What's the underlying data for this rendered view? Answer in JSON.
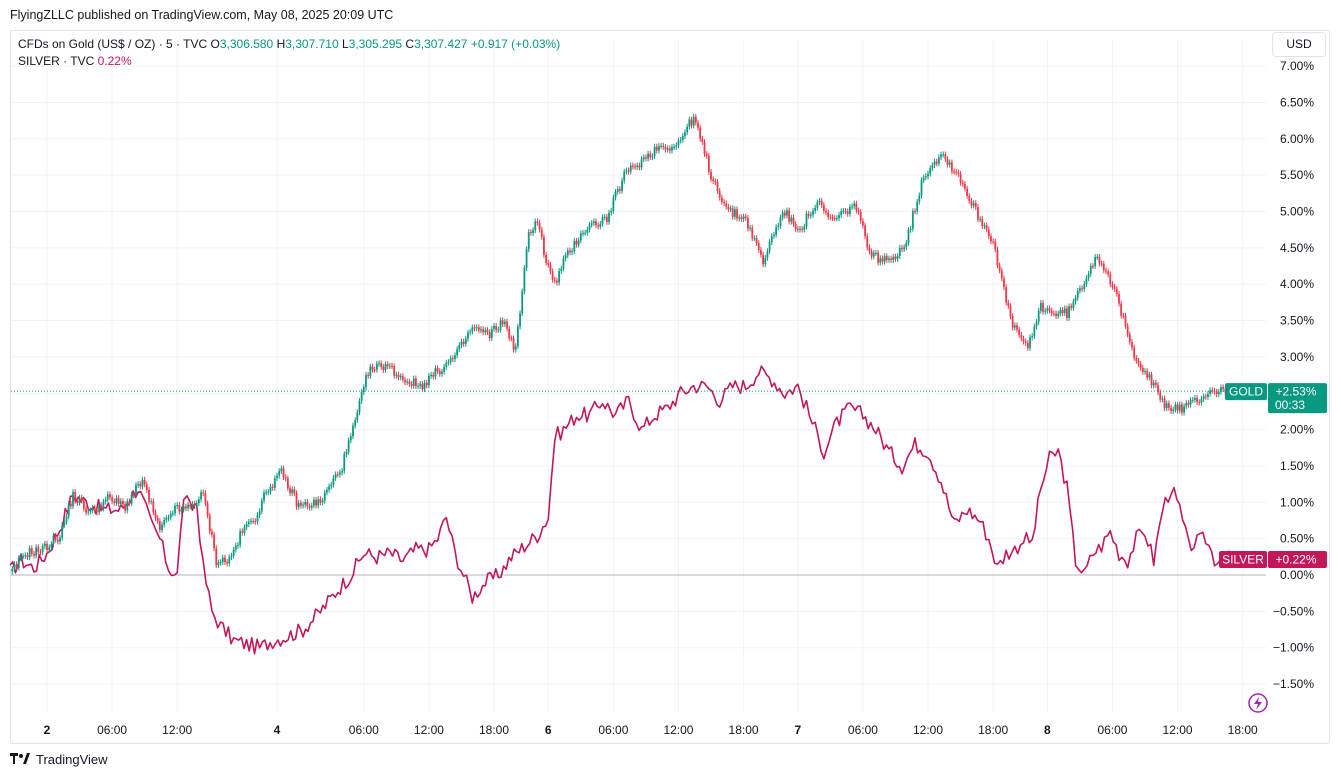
{
  "header": {
    "publisher_line": "FlyingZLLC published on TradingView.com, May 08, 2025 20:09 UTC"
  },
  "legend": {
    "main_symbol": "CFDs on Gold (US$ / OZ) · 5 · TVC",
    "o_label": "O",
    "o_value": "3,306.580",
    "h_label": "H",
    "h_value": "3,307.710",
    "l_label": "L",
    "l_value": "3,305.295",
    "c_label": "C",
    "c_value": "3,307.427",
    "change": "+0.917 (+0.03%)",
    "compare_symbol": "SILVER · TVC",
    "compare_value": "0.22%"
  },
  "currency_button": "USD",
  "brand": {
    "name": "TradingView"
  },
  "colors": {
    "up": "#089981",
    "down": "#f23645",
    "silver": "#c2185b",
    "grid": "#f0f3fa",
    "axis_text": "#131722"
  },
  "chart_data": {
    "type": "line",
    "title": "",
    "y_unit": "percent change",
    "ylim": [
      -1.9,
      7.5
    ],
    "y_ticks": [
      7.0,
      6.5,
      6.0,
      5.5,
      5.0,
      4.5,
      4.0,
      3.5,
      3.0,
      2.5,
      2.0,
      1.5,
      1.0,
      0.5,
      0.0,
      -0.5,
      -1.0,
      -1.5
    ],
    "y_tick_labels": [
      "7.00%",
      "6.50%",
      "6.00%",
      "5.50%",
      "5.00%",
      "4.50%",
      "4.00%",
      "3.50%",
      "3.00%",
      "",
      "2.00%",
      "1.50%",
      "1.00%",
      "0.50%",
      "0.00%",
      "−0.50%",
      "−1.00%",
      "−1.50%"
    ],
    "x_tick_labels": [
      {
        "t": 0.0,
        "label": "2",
        "bold": true
      },
      {
        "t": 3.0,
        "label": "06:00",
        "bold": false
      },
      {
        "t": 6.0,
        "label": "12:00",
        "bold": false
      },
      {
        "t": 10.6,
        "label": "4",
        "bold": true
      },
      {
        "t": 14.6,
        "label": "06:00",
        "bold": false
      },
      {
        "t": 17.6,
        "label": "12:00",
        "bold": false
      },
      {
        "t": 20.6,
        "label": "18:00",
        "bold": false
      },
      {
        "t": 23.1,
        "label": "6",
        "bold": true
      },
      {
        "t": 26.1,
        "label": "06:00",
        "bold": false
      },
      {
        "t": 29.1,
        "label": "12:00",
        "bold": false
      },
      {
        "t": 32.1,
        "label": "18:00",
        "bold": false
      },
      {
        "t": 34.6,
        "label": "7",
        "bold": true
      },
      {
        "t": 37.6,
        "label": "06:00",
        "bold": false
      },
      {
        "t": 40.6,
        "label": "12:00",
        "bold": false
      },
      {
        "t": 43.6,
        "label": "18:00",
        "bold": false
      },
      {
        "t": 46.1,
        "label": "8",
        "bold": true
      },
      {
        "t": 49.1,
        "label": "06:00",
        "bold": false
      },
      {
        "t": 52.1,
        "label": "12:00",
        "bold": false
      },
      {
        "t": 55.1,
        "label": "18:00",
        "bold": false
      }
    ],
    "series": [
      {
        "name": "GOLD",
        "style": "candles",
        "x": [
          -1.7,
          -1.0,
          -0.2,
          0.6,
          1.2,
          2.0,
          2.8,
          3.6,
          4.4,
          5.2,
          5.8,
          6.4,
          7.2,
          7.8,
          8.4,
          9.0,
          9.6,
          10.2,
          10.8,
          11.6,
          12.6,
          13.6,
          14.2,
          14.8,
          15.6,
          16.4,
          17.2,
          18.0,
          18.8,
          19.6,
          20.4,
          21.0,
          21.6,
          22.2,
          22.6,
          23.0,
          23.4,
          23.8,
          24.2,
          24.6,
          25.0,
          25.8,
          26.6,
          27.4,
          28.2,
          29.0,
          29.8,
          30.6,
          31.4,
          32.2,
          33.0,
          33.6,
          34.0,
          34.4,
          34.8,
          35.2,
          35.6,
          36.0,
          36.4,
          36.8,
          37.2,
          38.0,
          38.8,
          39.6,
          40.4,
          41.2,
          42.0,
          42.8,
          43.6,
          44.4,
          45.2,
          45.8,
          46.4,
          47.0,
          47.6,
          48.0,
          48.4,
          48.8,
          49.2,
          50.0,
          50.8,
          51.6,
          52.4,
          53.0,
          53.6,
          54.2,
          54.6,
          55.0,
          55.4,
          55.8
        ],
        "values": [
          0.0,
          0.3,
          0.35,
          0.55,
          1.1,
          0.85,
          1.05,
          0.95,
          1.3,
          0.6,
          0.9,
          0.9,
          1.1,
          0.2,
          0.2,
          0.6,
          0.8,
          1.2,
          1.4,
          0.95,
          1.0,
          1.5,
          2.1,
          2.8,
          2.9,
          2.7,
          2.6,
          2.8,
          3.0,
          3.4,
          3.3,
          3.5,
          3.1,
          4.7,
          4.9,
          4.3,
          4.0,
          4.3,
          4.5,
          4.7,
          4.8,
          4.9,
          5.5,
          5.7,
          5.9,
          5.9,
          6.3,
          5.5,
          5.0,
          4.9,
          4.3,
          4.8,
          5.0,
          4.8,
          4.8,
          5.0,
          5.1,
          4.9,
          4.9,
          5.0,
          5.1,
          4.4,
          4.3,
          4.6,
          5.5,
          5.8,
          5.5,
          5.0,
          4.6,
          3.5,
          3.1,
          3.7,
          3.6,
          3.6,
          3.9,
          4.2,
          4.4,
          4.2,
          3.9,
          3.1,
          2.7,
          2.3,
          2.3,
          2.4,
          2.53,
          2.53,
          2.53,
          2.53,
          2.53,
          2.53
        ]
      },
      {
        "name": "SILVER",
        "style": "line",
        "x": [
          -1.7,
          -1.2,
          -0.6,
          0.0,
          0.6,
          1.2,
          1.8,
          2.6,
          3.4,
          4.2,
          4.8,
          5.2,
          5.6,
          6.0,
          6.3,
          6.6,
          6.9,
          7.2,
          7.6,
          8.0,
          8.6,
          9.2,
          9.8,
          10.4,
          11.0,
          11.8,
          12.6,
          13.4,
          14.0,
          14.6,
          15.2,
          15.8,
          16.4,
          17.0,
          17.6,
          18.0,
          18.4,
          18.8,
          19.2,
          19.6,
          20.2,
          20.8,
          21.4,
          22.0,
          22.6,
          23.1,
          23.4,
          23.8,
          24.4,
          25.0,
          25.6,
          26.2,
          26.8,
          27.4,
          28.0,
          28.6,
          29.2,
          29.8,
          30.4,
          31.0,
          31.6,
          32.2,
          32.8,
          33.4,
          34.0,
          34.6,
          35.0,
          35.4,
          35.8,
          36.4,
          37.0,
          37.6,
          38.2,
          38.8,
          39.4,
          40.0,
          40.6,
          41.2,
          41.8,
          42.4,
          43.0,
          43.4,
          43.8,
          44.2,
          44.6,
          45.0,
          45.4,
          45.8,
          46.2,
          46.6,
          47.0,
          47.4,
          47.8,
          48.2,
          48.6,
          49.0,
          49.4,
          49.8,
          50.2,
          50.6,
          51.0,
          51.4,
          51.8,
          52.2,
          52.6,
          53.0,
          53.4,
          53.8,
          54.2,
          54.6,
          55.0,
          55.4,
          55.8
        ],
        "values": [
          0.05,
          0.2,
          0.1,
          0.3,
          0.65,
          1.1,
          1.0,
          0.9,
          0.9,
          1.2,
          0.7,
          0.5,
          0.1,
          0.0,
          1.1,
          0.9,
          1.0,
          0.1,
          -0.5,
          -0.7,
          -0.9,
          -0.95,
          -1.0,
          -0.9,
          -0.85,
          -0.75,
          -0.5,
          -0.2,
          0.0,
          0.3,
          0.25,
          0.3,
          0.2,
          0.35,
          0.35,
          0.5,
          0.8,
          0.3,
          0.0,
          -0.3,
          -0.1,
          0.0,
          0.25,
          0.4,
          0.55,
          0.8,
          1.9,
          2.0,
          2.2,
          2.2,
          2.4,
          2.2,
          2.4,
          2.0,
          2.2,
          2.3,
          2.5,
          2.6,
          2.6,
          2.4,
          2.6,
          2.6,
          2.8,
          2.7,
          2.5,
          2.6,
          2.3,
          2.0,
          1.7,
          2.1,
          2.3,
          2.2,
          2.0,
          1.7,
          1.5,
          1.8,
          1.7,
          1.3,
          0.7,
          0.9,
          0.75,
          0.5,
          0.1,
          0.3,
          0.35,
          0.5,
          0.45,
          1.2,
          1.6,
          1.7,
          1.2,
          0.2,
          0.0,
          0.3,
          0.4,
          0.6,
          0.3,
          0.2,
          0.5,
          0.6,
          0.2,
          0.9,
          1.2,
          0.9,
          0.4,
          0.45,
          0.5,
          0.22,
          0.22,
          0.22,
          0.22,
          0.22,
          0.22
        ]
      }
    ],
    "price_labels": [
      {
        "series": "GOLD",
        "name": "GOLD",
        "value": "+2.53%",
        "countdown": "00:33",
        "level": 2.53
      },
      {
        "series": "SILVER",
        "name": "SILVER",
        "value": "+0.22%",
        "level": 0.22
      }
    ],
    "legend_position": "top-left",
    "grid": true
  }
}
